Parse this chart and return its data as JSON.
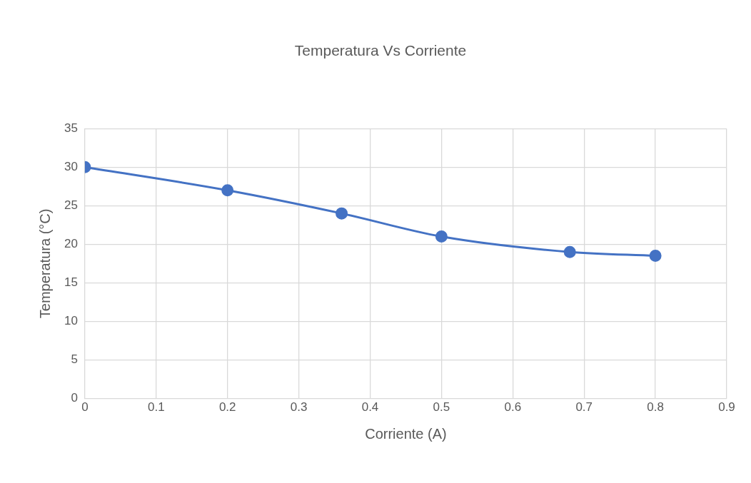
{
  "chart_data": {
    "type": "line",
    "title": "Temperatura Vs Corriente",
    "xlabel": "Corriente (A)",
    "ylabel": "Temperatura (°C)",
    "x": [
      0,
      0.2,
      0.36,
      0.5,
      0.68,
      0.8
    ],
    "series": [
      {
        "color": "#4472c4",
        "values": [
          30,
          27,
          24,
          21,
          19,
          18.5
        ]
      }
    ],
    "xlim": [
      0,
      0.9
    ],
    "xticks": [
      0,
      0.1,
      0.2,
      0.3,
      0.4,
      0.5,
      0.6,
      0.7,
      0.8,
      0.9
    ],
    "ylim": [
      0,
      35
    ],
    "yticks": [
      0,
      5,
      10,
      15,
      20,
      25,
      30,
      35
    ],
    "grid": true,
    "marker": "circle",
    "line_style": "solid"
  }
}
